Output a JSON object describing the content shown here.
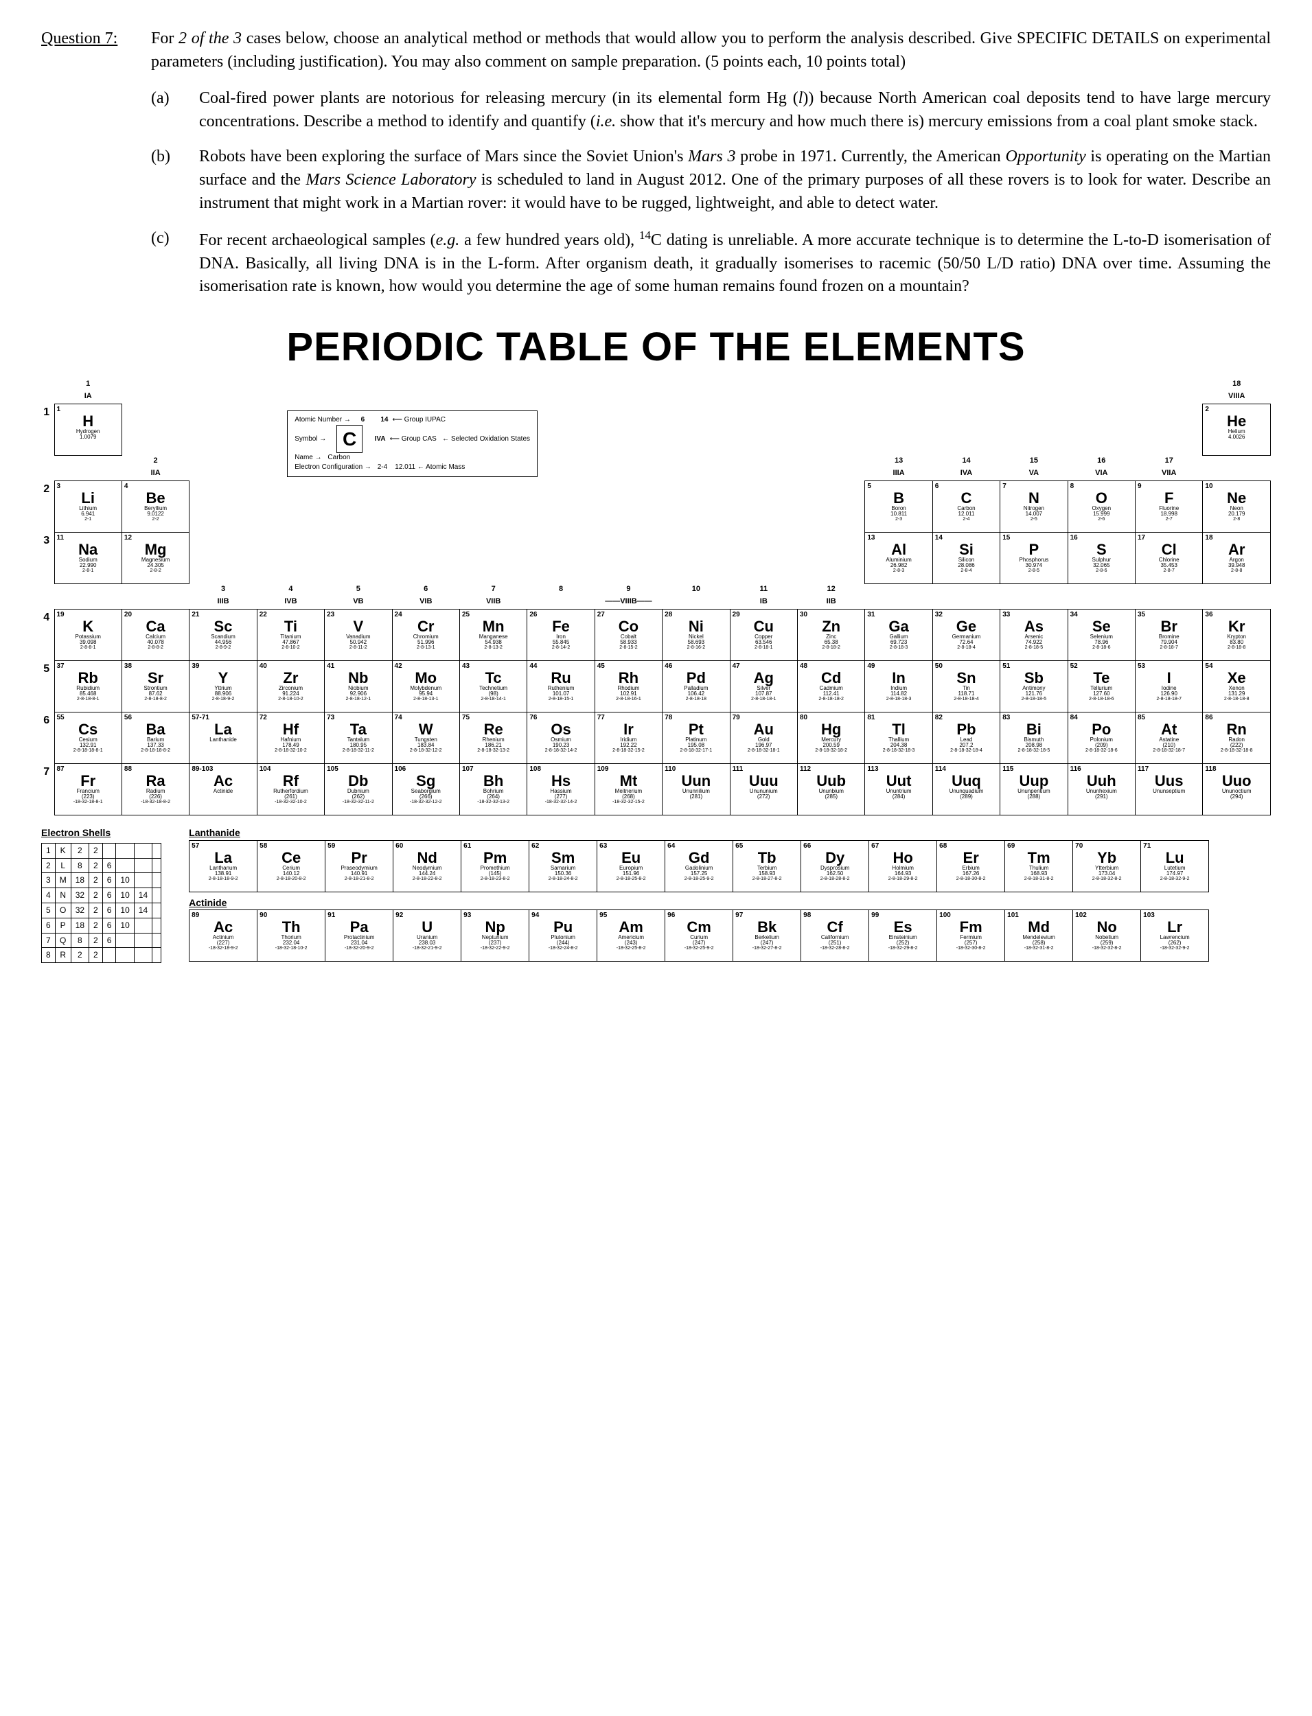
{
  "question": {
    "label": "Question 7:",
    "intro1": "For ",
    "intro_italic": "2 of the 3",
    "intro2": " cases below, choose an analytical method or methods that would allow you to perform the analysis described.  Give SPECIFIC DETAILS on experimental parameters (including justification).  You may also comment on sample preparation.  (5 points each, 10 points total)",
    "parts": {
      "a": {
        "label": "(a)",
        "t1": "Coal-fired power plants are notorious for releasing mercury (in its elemental form Hg ",
        "hgform": "(l)",
        "t2": ") because North American coal deposits tend to have large mercury concentrations. Describe a method to identify and quantify (",
        "ie": "i.e.",
        "t3": " show that it's mercury and how much there is) mercury emissions from a coal plant smoke stack."
      },
      "b": {
        "label": "(b)",
        "t1": "Robots have been exploring the surface of Mars since the Soviet Union's ",
        "mars3": "Mars 3",
        "t2": " probe in 1971. Currently, the American ",
        "opp": "Opportunity",
        "t3": " is operating on the Martian surface and the ",
        "msl": "Mars Science Laboratory",
        "t4": " is scheduled to land in August 2012. One of the primary purposes of all these rovers is to look for water. Describe an instrument that might work in a Martian rover: it would have to be rugged, lightweight, and able to detect water."
      },
      "c": {
        "label": "(c)",
        "t1": "For recent archaeological samples (",
        "eg": "e.g.",
        "t2": " a few hundred years old), ",
        "c14sup": "14",
        "t3": "C dating is unreliable. A more accurate technique is to determine the L-to-D isomerisation of DNA. Basically, all living DNA is in the L-form. After organism death, it gradually isomerises to racemic (50/50 L/D ratio) DNA over time. Assuming the isomerisation rate is known, how would you determine the age of some human remains found frozen on a mountain?"
      }
    }
  },
  "periodic": {
    "title": "PERIODIC TABLE OF THE ELEMENTS",
    "group_top": [
      "1",
      "",
      "",
      "",
      "",
      "",
      "",
      "",
      "",
      "",
      "",
      "",
      "",
      "",
      "",
      "",
      "",
      "18"
    ],
    "group_old": [
      "IA",
      "",
      "",
      "",
      "",
      "",
      "",
      "",
      "",
      "",
      "",
      "",
      "",
      "",
      "",
      "",
      "",
      "VIIIA"
    ],
    "group_row2_num": [
      "",
      "2",
      "",
      "",
      "",
      "",
      "",
      "",
      "",
      "",
      "",
      "",
      "13",
      "14",
      "15",
      "16",
      "17",
      ""
    ],
    "group_row2_old": [
      "",
      "IIA",
      "",
      "",
      "",
      "",
      "",
      "",
      "",
      "",
      "",
      "",
      "IIIA",
      "IVA",
      "VA",
      "VIA",
      "VIIA",
      ""
    ],
    "group_row4_num": [
      "",
      "",
      "3",
      "4",
      "5",
      "6",
      "7",
      "8",
      "9",
      "10",
      "11",
      "12",
      "",
      "",
      "",
      "",
      "",
      ""
    ],
    "group_row4_old": [
      "",
      "",
      "IIIB",
      "IVB",
      "VB",
      "VIB",
      "VIIB",
      "",
      "——VIIIB——",
      "",
      "IB",
      "IIB",
      "",
      "",
      "",
      "",
      "",
      ""
    ],
    "legend": {
      "num_lbl": "Atomic Number",
      "sym_lbl": "Symbol",
      "name_lbl": "Name",
      "ec_lbl": "Electron Configuration",
      "mass_lbl": "Atomic Mass",
      "gi": "Group IUPAC",
      "gc": "Group CAS",
      "ox": "Selected Oxidation States",
      "iupac_num": "14",
      "cas_lbl": "IVA",
      "sym": "C",
      "name": "Carbon",
      "mass": "12.011",
      "ec": "2-4",
      "num": "6"
    },
    "periods": [
      "1",
      "2",
      "3",
      "4",
      "5",
      "6",
      "7"
    ],
    "elements": [
      [
        [
          "1",
          "H",
          "Hydrogen",
          "1.0079",
          ""
        ],
        null,
        null,
        null,
        null,
        null,
        null,
        null,
        null,
        null,
        null,
        null,
        null,
        null,
        null,
        null,
        null,
        [
          "2",
          "He",
          "Helium",
          "4.0026",
          ""
        ]
      ],
      [
        [
          "3",
          "Li",
          "Lithium",
          "6.941",
          "2-1"
        ],
        [
          "4",
          "Be",
          "Beryllium",
          "9.0122",
          "2-2"
        ],
        null,
        null,
        null,
        null,
        null,
        null,
        null,
        null,
        null,
        null,
        [
          "5",
          "B",
          "Boron",
          "10.811",
          "2-3"
        ],
        [
          "6",
          "C",
          "Carbon",
          "12.011",
          "2-4"
        ],
        [
          "7",
          "N",
          "Nitrogen",
          "14.007",
          "2-5"
        ],
        [
          "8",
          "O",
          "Oxygen",
          "15.999",
          "2-6"
        ],
        [
          "9",
          "F",
          "Fluorine",
          "18.998",
          "2-7"
        ],
        [
          "10",
          "Ne",
          "Neon",
          "20.179",
          "2-8"
        ]
      ],
      [
        [
          "11",
          "Na",
          "Sodium",
          "22.990",
          "2-8-1"
        ],
        [
          "12",
          "Mg",
          "Magnesium",
          "24.305",
          "2-8-2"
        ],
        null,
        null,
        null,
        null,
        null,
        null,
        null,
        null,
        null,
        null,
        [
          "13",
          "Al",
          "Aluminium",
          "26.982",
          "2-8-3"
        ],
        [
          "14",
          "Si",
          "Silicon",
          "28.086",
          "2-8-4"
        ],
        [
          "15",
          "P",
          "Phosphorus",
          "30.974",
          "2-8-5"
        ],
        [
          "16",
          "S",
          "Sulphur",
          "32.065",
          "2-8-6"
        ],
        [
          "17",
          "Cl",
          "Chlorine",
          "35.453",
          "2-8-7"
        ],
        [
          "18",
          "Ar",
          "Argon",
          "39.948",
          "2-8-8"
        ]
      ],
      [
        [
          "19",
          "K",
          "Potassium",
          "39.098",
          "2-8-8-1"
        ],
        [
          "20",
          "Ca",
          "Calcium",
          "40.078",
          "2-8-8-2"
        ],
        [
          "21",
          "Sc",
          "Scandium",
          "44.956",
          "2-8-9-2"
        ],
        [
          "22",
          "Ti",
          "Titanium",
          "47.867",
          "2-8-10-2"
        ],
        [
          "23",
          "V",
          "Vanadium",
          "50.942",
          "2-8-11-2"
        ],
        [
          "24",
          "Cr",
          "Chromium",
          "51.996",
          "2-8-13-1"
        ],
        [
          "25",
          "Mn",
          "Manganese",
          "54.938",
          "2-8-13-2"
        ],
        [
          "26",
          "Fe",
          "Iron",
          "55.845",
          "2-8-14-2"
        ],
        [
          "27",
          "Co",
          "Cobalt",
          "58.933",
          "2-8-15-2"
        ],
        [
          "28",
          "Ni",
          "Nickel",
          "58.693",
          "2-8-16-2"
        ],
        [
          "29",
          "Cu",
          "Copper",
          "63.546",
          "2-8-18-1"
        ],
        [
          "30",
          "Zn",
          "Zinc",
          "65.38",
          "2-8-18-2"
        ],
        [
          "31",
          "Ga",
          "Gallium",
          "69.723",
          "2-8-18-3"
        ],
        [
          "32",
          "Ge",
          "Germanium",
          "72.64",
          "2-8-18-4"
        ],
        [
          "33",
          "As",
          "Arsenic",
          "74.922",
          "2-8-18-5"
        ],
        [
          "34",
          "Se",
          "Selenium",
          "78.96",
          "2-8-18-6"
        ],
        [
          "35",
          "Br",
          "Bromine",
          "79.904",
          "2-8-18-7"
        ],
        [
          "36",
          "Kr",
          "Krypton",
          "83.80",
          "2-8-18-8"
        ]
      ],
      [
        [
          "37",
          "Rb",
          "Rubidium",
          "85.468",
          "2-8-18-8-1"
        ],
        [
          "38",
          "Sr",
          "Strontium",
          "87.62",
          "2-8-18-8-2"
        ],
        [
          "39",
          "Y",
          "Yttrium",
          "88.906",
          "2-8-18-9-2"
        ],
        [
          "40",
          "Zr",
          "Zirconium",
          "91.224",
          "2-8-18-10-2"
        ],
        [
          "41",
          "Nb",
          "Niobium",
          "92.906",
          "2-8-18-12-1"
        ],
        [
          "42",
          "Mo",
          "Molybdenum",
          "95.94",
          "2-8-18-13-1"
        ],
        [
          "43",
          "Tc",
          "Technetium",
          "(98)",
          "2-8-18-14-1"
        ],
        [
          "44",
          "Ru",
          "Ruthenium",
          "101.07",
          "2-8-18-15-1"
        ],
        [
          "45",
          "Rh",
          "Rhodium",
          "102.91",
          "2-8-18-16-1"
        ],
        [
          "46",
          "Pd",
          "Palladium",
          "106.42",
          "2-8-18-18"
        ],
        [
          "47",
          "Ag",
          "Silver",
          "107.87",
          "2-8-18-18-1"
        ],
        [
          "48",
          "Cd",
          "Cadmium",
          "112.41",
          "2-8-18-18-2"
        ],
        [
          "49",
          "In",
          "Indium",
          "114.82",
          "2-8-18-18-3"
        ],
        [
          "50",
          "Sn",
          "Tin",
          "118.71",
          "2-8-18-18-4"
        ],
        [
          "51",
          "Sb",
          "Antimony",
          "121.76",
          "2-8-18-18-5"
        ],
        [
          "52",
          "Te",
          "Tellurium",
          "127.60",
          "2-8-18-18-6"
        ],
        [
          "53",
          "I",
          "Iodine",
          "126.90",
          "2-8-18-18-7"
        ],
        [
          "54",
          "Xe",
          "Xenon",
          "131.29",
          "2-8-18-18-8"
        ]
      ],
      [
        [
          "55",
          "Cs",
          "Cesium",
          "132.91",
          "2-8-18-18-8-1"
        ],
        [
          "56",
          "Ba",
          "Barium",
          "137.33",
          "2-8-18-18-8-2"
        ],
        [
          "57-71",
          "La",
          "Lanthanide",
          "",
          ""
        ],
        [
          "72",
          "Hf",
          "Hafnium",
          "178.49",
          "2-8-18-32-10-2"
        ],
        [
          "73",
          "Ta",
          "Tantalum",
          "180.95",
          "2-8-18-32-11-2"
        ],
        [
          "74",
          "W",
          "Tungsten",
          "183.84",
          "2-8-18-32-12-2"
        ],
        [
          "75",
          "Re",
          "Rhenium",
          "186.21",
          "2-8-18-32-13-2"
        ],
        [
          "76",
          "Os",
          "Osmium",
          "190.23",
          "2-8-18-32-14-2"
        ],
        [
          "77",
          "Ir",
          "Iridium",
          "192.22",
          "2-8-18-32-15-2"
        ],
        [
          "78",
          "Pt",
          "Platinum",
          "195.08",
          "2-8-18-32-17-1"
        ],
        [
          "79",
          "Au",
          "Gold",
          "196.97",
          "2-8-18-32-18-1"
        ],
        [
          "80",
          "Hg",
          "Mercury",
          "200.59",
          "2-8-18-32-18-2"
        ],
        [
          "81",
          "Tl",
          "Thallium",
          "204.38",
          "2-8-18-32-18-3"
        ],
        [
          "82",
          "Pb",
          "Lead",
          "207.2",
          "2-8-18-32-18-4"
        ],
        [
          "83",
          "Bi",
          "Bismuth",
          "208.98",
          "2-8-18-32-18-5"
        ],
        [
          "84",
          "Po",
          "Polonium",
          "(209)",
          "2-8-18-32-18-6"
        ],
        [
          "85",
          "At",
          "Astatine",
          "(210)",
          "2-8-18-32-18-7"
        ],
        [
          "86",
          "Rn",
          "Radon",
          "(222)",
          "2-8-18-32-18-8"
        ]
      ],
      [
        [
          "87",
          "Fr",
          "Francium",
          "(223)",
          "-18-32-18-8-1"
        ],
        [
          "88",
          "Ra",
          "Radium",
          "(226)",
          "-18-32-18-8-2"
        ],
        [
          "89-103",
          "Ac",
          "Actinide",
          "",
          ""
        ],
        [
          "104",
          "Rf",
          "Rutherfordium",
          "(261)",
          "-18-32-32-10-2"
        ],
        [
          "105",
          "Db",
          "Dubnium",
          "(262)",
          "-18-32-32-11-2"
        ],
        [
          "106",
          "Sg",
          "Seaborgium",
          "(266)",
          "-18-32-32-12-2"
        ],
        [
          "107",
          "Bh",
          "Bohrium",
          "(264)",
          "-18-32-32-13-2"
        ],
        [
          "108",
          "Hs",
          "Hassium",
          "(277)",
          "-18-32-32-14-2"
        ],
        [
          "109",
          "Mt",
          "Meitnerium",
          "(268)",
          "-18-32-32-15-2"
        ],
        [
          "110",
          "Uun",
          "Ununnilium",
          "(281)",
          ""
        ],
        [
          "111",
          "Uuu",
          "Unununium",
          "(272)",
          ""
        ],
        [
          "112",
          "Uub",
          "Ununbium",
          "(285)",
          ""
        ],
        [
          "113",
          "Uut",
          "Ununtrium",
          "(284)",
          ""
        ],
        [
          "114",
          "Uuq",
          "Ununquadium",
          "(289)",
          ""
        ],
        [
          "115",
          "Uup",
          "Ununpentium",
          "(288)",
          ""
        ],
        [
          "116",
          "Uuh",
          "Ununhexium",
          "(291)",
          ""
        ],
        [
          "117",
          "Uus",
          "Ununseptium",
          "",
          ""
        ],
        [
          "118",
          "Uuo",
          "Ununoctium",
          "(294)",
          ""
        ]
      ]
    ],
    "lanthanide_label": "Lanthanide",
    "actinide_label": "Actinide",
    "lan": [
      [
        "57",
        "La",
        "Lanthanum",
        "138.91",
        "2-8-18-18-9-2"
      ],
      [
        "58",
        "Ce",
        "Cerium",
        "140.12",
        "2-8-18-20-8-2"
      ],
      [
        "59",
        "Pr",
        "Praseodymium",
        "140.91",
        "2-8-18-21-8-2"
      ],
      [
        "60",
        "Nd",
        "Neodymium",
        "144.24",
        "2-8-18-22-8-2"
      ],
      [
        "61",
        "Pm",
        "Promethium",
        "(145)",
        "2-8-18-23-8-2"
      ],
      [
        "62",
        "Sm",
        "Samarium",
        "150.36",
        "2-8-18-24-8-2"
      ],
      [
        "63",
        "Eu",
        "Europium",
        "151.96",
        "2-8-18-25-8-2"
      ],
      [
        "64",
        "Gd",
        "Gadolinium",
        "157.25",
        "2-8-18-25-9-2"
      ],
      [
        "65",
        "Tb",
        "Terbium",
        "158.93",
        "2-8-18-27-8-2"
      ],
      [
        "66",
        "Dy",
        "Dysprosium",
        "162.50",
        "2-8-18-28-8-2"
      ],
      [
        "67",
        "Ho",
        "Holmium",
        "164.93",
        "2-8-18-29-8-2"
      ],
      [
        "68",
        "Er",
        "Erbium",
        "167.26",
        "2-8-18-30-8-2"
      ],
      [
        "69",
        "Tm",
        "Thulium",
        "168.93",
        "2-8-18-31-8-2"
      ],
      [
        "70",
        "Yb",
        "Ytterbium",
        "173.04",
        "2-8-18-32-8-2"
      ],
      [
        "71",
        "Lu",
        "Lutetium",
        "174.97",
        "2-8-18-32-9-2"
      ]
    ],
    "act": [
      [
        "89",
        "Ac",
        "Actinium",
        "(227)",
        "-18-32-18-9-2"
      ],
      [
        "90",
        "Th",
        "Thorium",
        "232.04",
        "-18-32-18-10-2"
      ],
      [
        "91",
        "Pa",
        "Protactinium",
        "231.04",
        "-18-32-20-9-2"
      ],
      [
        "92",
        "U",
        "Uranium",
        "238.03",
        "-18-32-21-9-2"
      ],
      [
        "93",
        "Np",
        "Neptunium",
        "(237)",
        "-18-32-22-9-2"
      ],
      [
        "94",
        "Pu",
        "Plutonium",
        "(244)",
        "-18-32-24-8-2"
      ],
      [
        "95",
        "Am",
        "Americium",
        "(243)",
        "-18-32-25-8-2"
      ],
      [
        "96",
        "Cm",
        "Curium",
        "(247)",
        "-18-32-25-9-2"
      ],
      [
        "97",
        "Bk",
        "Berkelium",
        "(247)",
        "-18-32-27-8-2"
      ],
      [
        "98",
        "Cf",
        "Californium",
        "(251)",
        "-18-32-28-8-2"
      ],
      [
        "99",
        "Es",
        "Einsteinium",
        "(252)",
        "-18-32-29-8-2"
      ],
      [
        "100",
        "Fm",
        "Fermium",
        "(257)",
        "-18-32-30-8-2"
      ],
      [
        "101",
        "Md",
        "Mendelevium",
        "(258)",
        "-18-32-31-8-2"
      ],
      [
        "102",
        "No",
        "Nobelium",
        "(259)",
        "-18-32-32-8-2"
      ],
      [
        "103",
        "Lr",
        "Lawrencium",
        "(262)",
        "-18-32-32-9-2"
      ]
    ],
    "shells": {
      "title": "Electron Shells",
      "header": [
        "",
        "K",
        "L",
        "M",
        "N",
        "O",
        "P",
        "Q"
      ],
      "rows": [
        [
          "1",
          "K",
          "2",
          "2",
          "",
          "",
          "",
          ""
        ],
        [
          "2",
          "L",
          "8",
          "2",
          "6",
          "",
          "",
          ""
        ],
        [
          "3",
          "M",
          "18",
          "2",
          "6",
          "10",
          "",
          ""
        ],
        [
          "4",
          "N",
          "32",
          "2",
          "6",
          "10",
          "14",
          ""
        ],
        [
          "5",
          "O",
          "32",
          "2",
          "6",
          "10",
          "14",
          ""
        ],
        [
          "6",
          "P",
          "18",
          "2",
          "6",
          "10",
          "",
          ""
        ],
        [
          "7",
          "Q",
          "8",
          "2",
          "6",
          "",
          "",
          ""
        ],
        [
          "8",
          "R",
          "2",
          "2",
          "",
          "",
          "",
          ""
        ]
      ]
    }
  }
}
